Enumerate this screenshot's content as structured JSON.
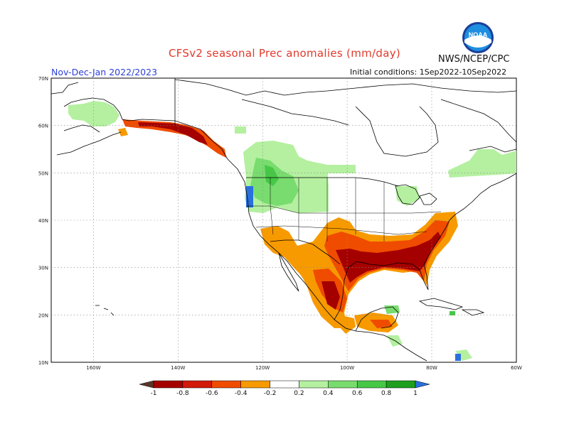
{
  "header": {
    "title": "CFSv2 seasonal Prec anomalies (mm/day)",
    "agency": "NWS/NCEP/CPC",
    "season": "Nov-Dec-Jan 2022/2023",
    "initial_conditions": "Initial conditions: 1Sep2022-10Sep2022",
    "logo_text": "NOAA"
  },
  "axes": {
    "lat_labels": [
      "70N",
      "60N",
      "50N",
      "40N",
      "30N",
      "20N",
      "10N"
    ],
    "lon_labels": [
      "160W",
      "140W",
      "120W",
      "100W",
      "80W",
      "60W"
    ]
  },
  "legend": {
    "labels": [
      "-1",
      "-0.8",
      "-0.6",
      "-0.4",
      "-0.2",
      "0.2",
      "0.4",
      "0.6",
      "0.8",
      "1"
    ],
    "colors": [
      "#5a3628",
      "#a50000",
      "#d21a0a",
      "#f04c00",
      "#f79a00",
      "#ffffff",
      "#b4f0a0",
      "#78dc6e",
      "#46c846",
      "#1ea01e",
      "#2a6fdc"
    ]
  },
  "anomaly_colors": {
    "dry_strong": "#a50000",
    "dry": "#d21a0a",
    "dry_moderate": "#f04c00",
    "dry_weak": "#f79a00",
    "wet_weak": "#b4f0a0",
    "wet": "#78dc6e",
    "wet_strong": "#46c846",
    "wet_very": "#1ea01e",
    "wet_extreme": "#2a6fdc"
  }
}
